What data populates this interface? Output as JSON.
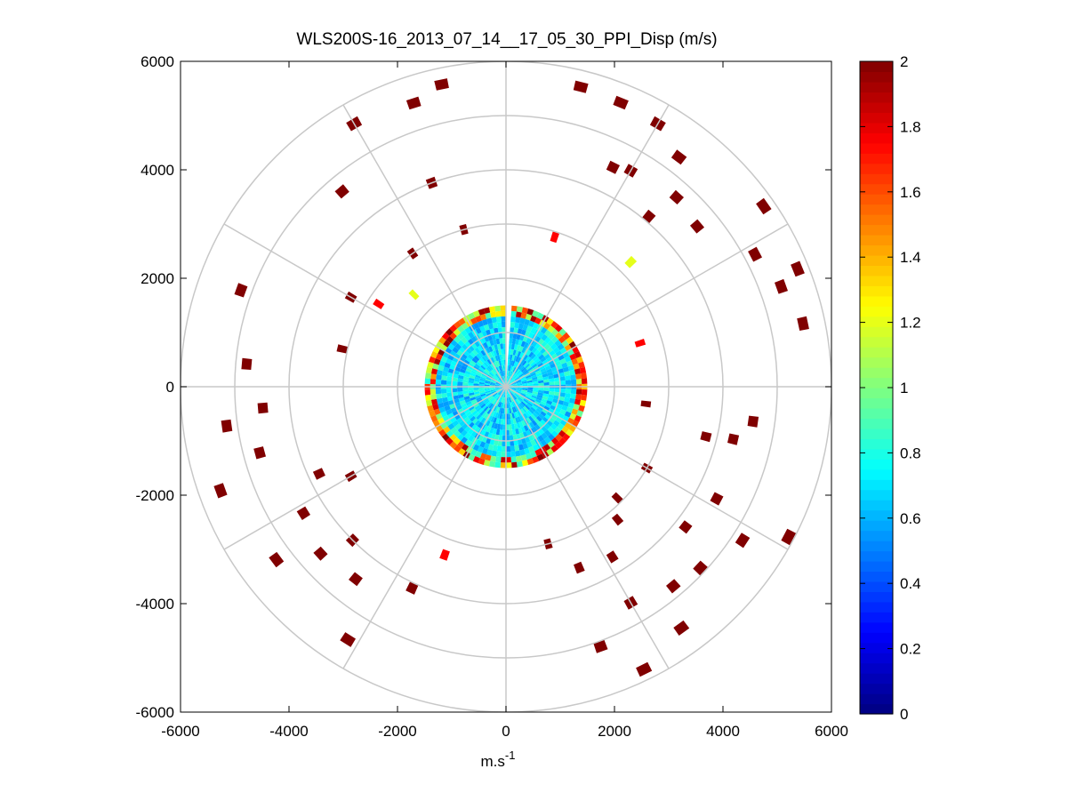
{
  "chart_data": {
    "type": "heatmap",
    "subtype": "polar-ppi",
    "title": "WLS200S-16_2013_07_14__17_05_30_PPI_Disp (m/s)",
    "xlabel": "m.s",
    "xlabel_superscript": "-1",
    "ylabel": "",
    "xlim": [
      -6000,
      6000
    ],
    "ylim": [
      -6000,
      6000
    ],
    "xticks": [
      -6000,
      -4000,
      -2000,
      0,
      2000,
      4000,
      6000
    ],
    "yticks": [
      6000,
      4000,
      2000,
      0,
      -2000,
      -4000,
      -6000
    ],
    "xtick_labels": [
      "-6000",
      "-4000",
      "-2000",
      "0",
      "2000",
      "4000",
      "6000"
    ],
    "ytick_labels": [
      "6000",
      "4000",
      "2000",
      "0",
      "-2000",
      "-4000",
      "-6000"
    ],
    "range_rings": [
      1000,
      2000,
      3000,
      4000,
      5000,
      6000
    ],
    "spoke_angles_deg": [
      0,
      30,
      60,
      90,
      120,
      150,
      180,
      210,
      240,
      270,
      300,
      330
    ],
    "colorbar": {
      "min": 0,
      "max": 2,
      "ticks": [
        0,
        0.2,
        0.4,
        0.6,
        0.8,
        1,
        1.2,
        1.4,
        1.6,
        1.8,
        2
      ],
      "tick_labels": [
        "0",
        "0.2",
        "0.4",
        "0.6",
        "0.8",
        "1",
        "1.2",
        "1.4",
        "1.6",
        "1.8",
        "2"
      ],
      "colormap": "jet"
    },
    "central_field": {
      "max_range": 1500,
      "typical_value": 0.7
    },
    "cells": [
      {
        "az": 14,
        "r": 5700,
        "v": 2
      },
      {
        "az": 22,
        "r": 5650,
        "v": 2
      },
      {
        "az": 30,
        "r": 5600,
        "v": 2
      },
      {
        "az": 37,
        "r": 5300,
        "v": 2
      },
      {
        "az": 26,
        "r": 4500,
        "v": 2
      },
      {
        "az": 30,
        "r": 4600,
        "v": 2
      },
      {
        "az": 40,
        "r": 4100,
        "v": 2
      },
      {
        "az": 42,
        "r": 4700,
        "v": 2
      },
      {
        "az": 50,
        "r": 4600,
        "v": 2
      },
      {
        "az": 55,
        "r": 5800,
        "v": 2
      },
      {
        "az": 62,
        "r": 5200,
        "v": 2
      },
      {
        "az": 70,
        "r": 5400,
        "v": 2
      },
      {
        "az": 68,
        "r": 5800,
        "v": 2
      },
      {
        "az": 78,
        "r": 5600,
        "v": 2
      },
      {
        "az": 98,
        "r": 4600,
        "v": 2
      },
      {
        "az": 103,
        "r": 4300,
        "v": 2
      },
      {
        "az": 97,
        "r": 2600,
        "v": 2
      },
      {
        "az": 104,
        "r": 3800,
        "v": 2
      },
      {
        "az": 118,
        "r": 4400,
        "v": 2
      },
      {
        "az": 118,
        "r": 5900,
        "v": 2
      },
      {
        "az": 123,
        "r": 5200,
        "v": 2
      },
      {
        "az": 128,
        "r": 4200,
        "v": 2
      },
      {
        "az": 133,
        "r": 4900,
        "v": 2
      },
      {
        "az": 140,
        "r": 4800,
        "v": 2
      },
      {
        "az": 144,
        "r": 5500,
        "v": 2
      },
      {
        "az": 150,
        "r": 4600,
        "v": 2
      },
      {
        "az": 154,
        "r": 5800,
        "v": 2
      },
      {
        "az": 160,
        "r": 5100,
        "v": 2
      },
      {
        "az": 158,
        "r": 3600,
        "v": 2
      },
      {
        "az": 165,
        "r": 3000,
        "v": 2
      },
      {
        "az": 140,
        "r": 3200,
        "v": 2
      },
      {
        "az": 148,
        "r": 3700,
        "v": 2
      },
      {
        "az": 135,
        "r": 2900,
        "v": 2
      },
      {
        "az": 120,
        "r": 3000,
        "v": 2
      },
      {
        "az": 200,
        "r": 3300,
        "v": 1.75
      },
      {
        "az": 205,
        "r": 4100,
        "v": 2
      },
      {
        "az": 212,
        "r": 5500,
        "v": 2
      },
      {
        "az": 218,
        "r": 4500,
        "v": 2
      },
      {
        "az": 225,
        "r": 4000,
        "v": 2
      },
      {
        "az": 228,
        "r": 4600,
        "v": 2
      },
      {
        "az": 233,
        "r": 5300,
        "v": 2
      },
      {
        "az": 238,
        "r": 4400,
        "v": 2
      },
      {
        "az": 240,
        "r": 3300,
        "v": 2
      },
      {
        "az": 245,
        "r": 3800,
        "v": 2
      },
      {
        "az": 250,
        "r": 5600,
        "v": 2
      },
      {
        "az": 255,
        "r": 4700,
        "v": 2
      },
      {
        "az": 262,
        "r": 5200,
        "v": 2
      },
      {
        "az": 265,
        "r": 4500,
        "v": 2
      },
      {
        "az": 275,
        "r": 4800,
        "v": 2
      },
      {
        "az": 283,
        "r": 3100,
        "v": 2
      },
      {
        "az": 290,
        "r": 5200,
        "v": 2
      },
      {
        "az": 300,
        "r": 3300,
        "v": 2
      },
      {
        "az": 303,
        "r": 2800,
        "v": 1.75
      },
      {
        "az": 320,
        "r": 4700,
        "v": 2
      },
      {
        "az": 325,
        "r": 3000,
        "v": 2
      },
      {
        "az": 330,
        "r": 5600,
        "v": 2
      },
      {
        "az": 340,
        "r": 4000,
        "v": 2
      },
      {
        "az": 342,
        "r": 5500,
        "v": 2
      },
      {
        "az": 345,
        "r": 3000,
        "v": 2
      },
      {
        "az": 348,
        "r": 5700,
        "v": 2
      },
      {
        "az": 18,
        "r": 2900,
        "v": 1.75
      },
      {
        "az": 45,
        "r": 3250,
        "v": 1.2
      },
      {
        "az": 72,
        "r": 2600,
        "v": 1.75
      },
      {
        "az": 315,
        "r": 2400,
        "v": 1.2
      }
    ]
  }
}
